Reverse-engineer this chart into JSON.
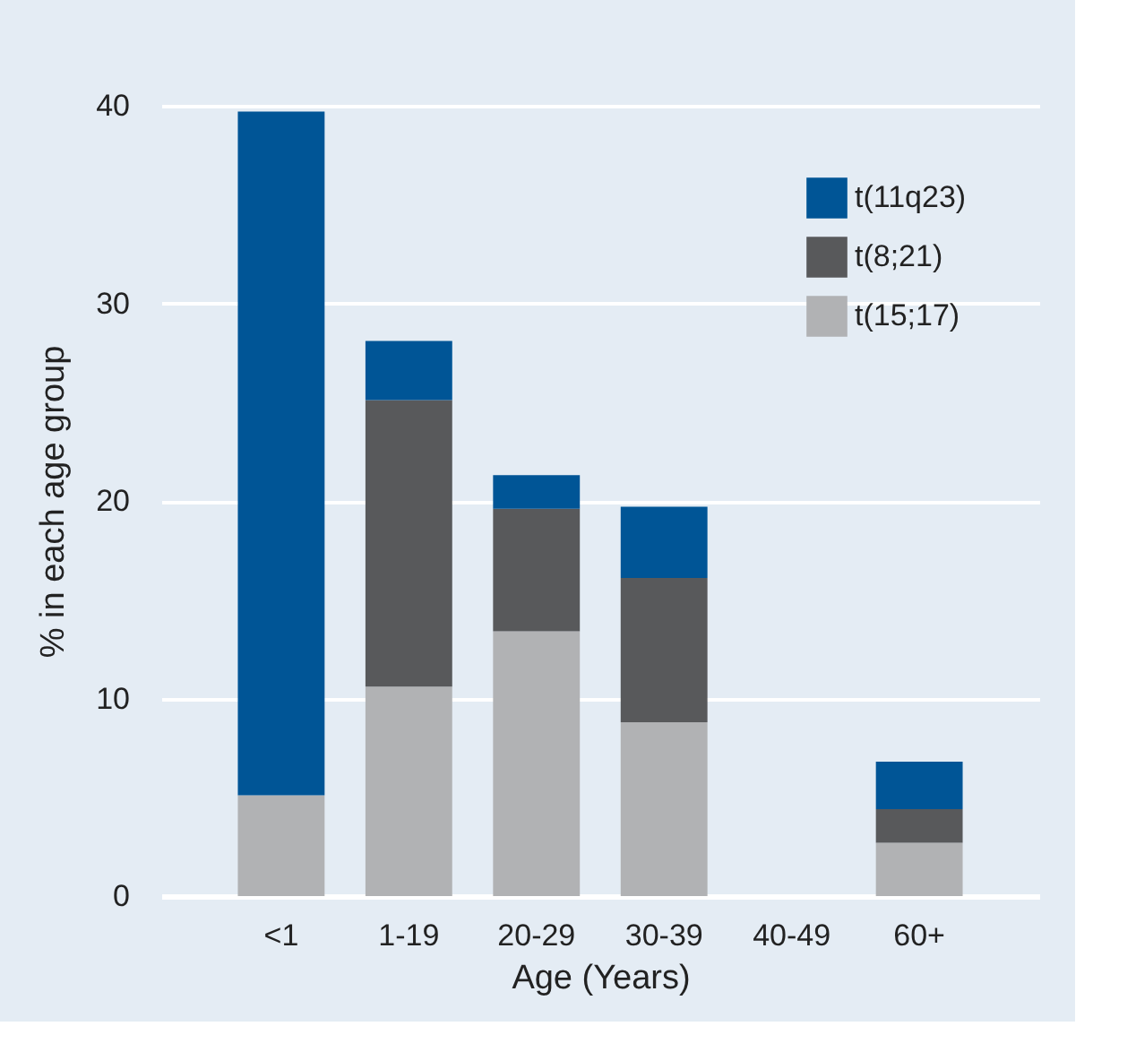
{
  "chart_data": {
    "type": "bar",
    "stacked": true,
    "xlabel": "Age (Years)",
    "ylabel": "% in each age group",
    "categories": [
      "<1",
      "1-19",
      "20-29",
      "30-39",
      "40-49",
      "60+"
    ],
    "series": [
      {
        "name": "t(15;17)",
        "color": "#b1b2b4",
        "values": [
          5.1,
          10.6,
          13.4,
          8.8,
          null,
          2.7
        ]
      },
      {
        "name": "t(8;21)",
        "color": "#58595b",
        "values": [
          0,
          14.5,
          6.2,
          7.3,
          null,
          1.7
        ]
      },
      {
        "name": "t(11q23)",
        "color": "#005596",
        "values": [
          34.6,
          3.0,
          1.7,
          3.6,
          null,
          2.4
        ]
      }
    ],
    "ylim": [
      0,
      40
    ],
    "yticks": [
      0,
      10,
      20,
      30,
      40
    ],
    "grid": "y",
    "legend": "top right"
  }
}
